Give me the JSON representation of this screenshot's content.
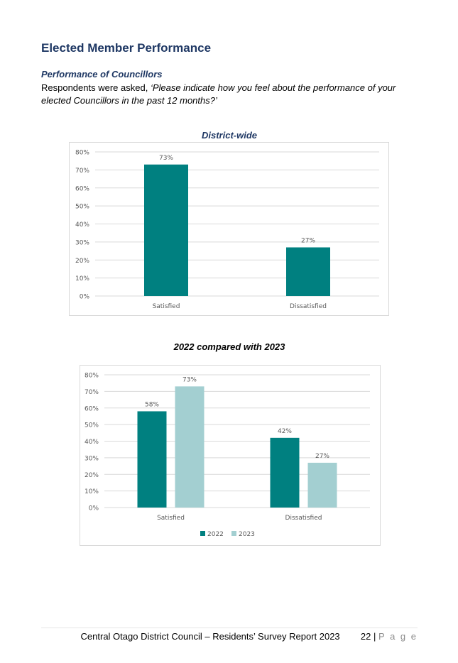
{
  "heading": "Elected Member Performance",
  "subheading": "Performance of Councillors",
  "intro": {
    "lead": "Respondents were asked, ",
    "question": "‘Please indicate how you feel about the performance of your elected Councillors in the past 12 months?’"
  },
  "colors": {
    "teal": "#008080",
    "light_teal": "#a3cfd1",
    "grid": "#d9d9d9",
    "axis_text": "#595959"
  },
  "chart_data": [
    {
      "type": "bar",
      "title": "District-wide",
      "categories": [
        "Satisfied",
        "Dissatisfied"
      ],
      "series": [
        {
          "values": [
            73,
            27
          ]
        }
      ],
      "data_labels": [
        "73%",
        "27%"
      ],
      "ylim": [
        0,
        80
      ],
      "yticks": [
        "0%",
        "10%",
        "20%",
        "30%",
        "40%",
        "50%",
        "60%",
        "70%",
        "80%"
      ],
      "grid": true
    },
    {
      "type": "bar",
      "title": "2022 compared with 2023",
      "categories": [
        "Satisfied",
        "Dissatisfied"
      ],
      "series": [
        {
          "name": "2022",
          "values": [
            58,
            42
          ],
          "labels": [
            "58%",
            "42%"
          ]
        },
        {
          "name": "2023",
          "values": [
            73,
            27
          ],
          "labels": [
            "73%",
            "27%"
          ]
        }
      ],
      "ylim": [
        0,
        80
      ],
      "yticks": [
        "0%",
        "10%",
        "20%",
        "30%",
        "40%",
        "50%",
        "60%",
        "70%",
        "80%"
      ],
      "grid": true,
      "legend": "bottom"
    }
  ],
  "footer": {
    "text": "Central Otago District Council – Residents’ Survey Report 2023",
    "page_number": "22",
    "separator": "|",
    "page_word": "P a g e"
  }
}
